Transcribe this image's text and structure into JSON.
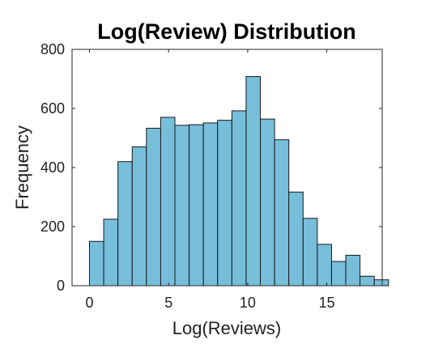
{
  "chart_data": {
    "type": "bar",
    "title": "Log(Review) Distribution",
    "xlabel": "Log(Reviews)",
    "ylabel": "Frequency",
    "xlim": [
      -1.1,
      18.5
    ],
    "ylim": [
      0,
      800
    ],
    "xticks": [
      0,
      5,
      10,
      15
    ],
    "yticks": [
      0,
      200,
      400,
      600,
      800
    ],
    "bin_edges": [
      0,
      0.9,
      1.8,
      2.7,
      3.6,
      4.5,
      5.4,
      6.3,
      7.2,
      8.1,
      9.0,
      9.9,
      10.8,
      11.7,
      12.6,
      13.5,
      14.4,
      15.3,
      16.2,
      17.1,
      18.0
    ],
    "values": [
      150,
      225,
      420,
      470,
      533,
      570,
      543,
      545,
      551,
      560,
      592,
      708,
      564,
      494,
      317,
      228,
      140,
      82,
      103,
      32,
      20
    ],
    "bar_color": "#77BEDB",
    "edge_color": "#1a1a1a",
    "grid": false,
    "legend": "none"
  }
}
